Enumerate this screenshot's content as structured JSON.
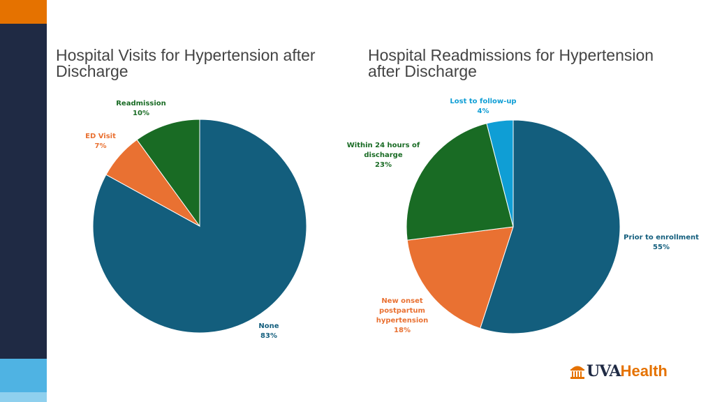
{
  "brand": {
    "logo_uva": "UVA",
    "logo_health": "Health",
    "colors": {
      "navy": "#1f2a44",
      "orange": "#e57200",
      "light_blue": "#4fb3e3"
    }
  },
  "chart_data": [
    {
      "type": "pie",
      "title": "Hospital Visits for Hypertension after Discharge",
      "slices": [
        {
          "label": "None",
          "value": 83,
          "value_label": "83%",
          "color": "#135e7d",
          "label_color": "#135e7d"
        },
        {
          "label": "ED Visit",
          "value": 7,
          "value_label": "7%",
          "color": "#e97132",
          "label_color": "#e97132"
        },
        {
          "label": "Readmission",
          "value": 10,
          "value_label": "10%",
          "color": "#196b24",
          "label_color": "#196b24"
        }
      ]
    },
    {
      "type": "pie",
      "title": "Hospital Readmissions for Hypertension after Discharge",
      "slices": [
        {
          "label": "Prior to enrollment",
          "value": 55,
          "value_label": "55%",
          "color": "#135e7d",
          "label_color": "#135e7d"
        },
        {
          "label": "New onset postpartum hypertension",
          "value": 18,
          "value_label": "18%",
          "color": "#e97132",
          "label_color": "#e97132"
        },
        {
          "label": "Within 24 hours of discharge",
          "value": 23,
          "value_label": "23%",
          "color": "#196b24",
          "label_color": "#196b24"
        },
        {
          "label": "Lost to follow-up",
          "value": 4,
          "value_label": "4%",
          "color": "#0f9ed5",
          "label_color": "#0f9ed5"
        }
      ]
    }
  ]
}
